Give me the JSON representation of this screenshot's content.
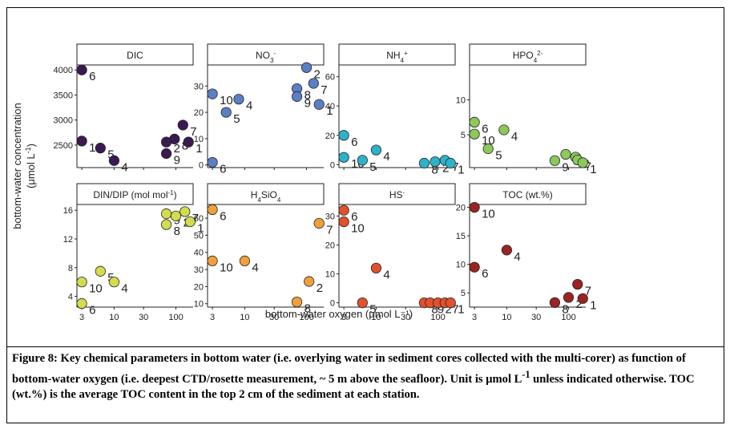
{
  "figure": {
    "ylabel_line1": "bottom-water concentration",
    "ylabel_line2_main": "(μmol L",
    "ylabel_line2_sup": "-1",
    "ylabel_line2_end": ")",
    "xlabel": "bottom-water oxygen (μmol L⁻¹)",
    "caption": {
      "lead": "Figure 8: Key chemical parameters in bottom water (i.e. overlying water in sediment cores collected with the multi-corer) as function of bottom-water oxygen (i.e. deepest CTD/rosette measurement, ~ 5 m above the seafloor). Unit is μmol L",
      "sup": "-1",
      "rest": " unless indicated otherwise. TOC (wt.%) is the average TOC content in the top 2 cm of the sediment at each station."
    }
  },
  "chart_data": [
    {
      "type": "scatter",
      "panel": "DIC",
      "title": "DIC",
      "title_sub": "",
      "title_sup": "",
      "color": "#3b1a52",
      "xscale": "log",
      "xlim": [
        2.5,
        190
      ],
      "xticks": [
        "3",
        "10",
        "30",
        "100"
      ],
      "ylim": [
        2050,
        4100
      ],
      "yticks": [
        2500,
        3000,
        3500,
        4000
      ],
      "points": [
        {
          "label": "6",
          "x": 3,
          "y": 4000
        },
        {
          "label": "10",
          "x": 3,
          "y": 2580
        },
        {
          "label": "5",
          "x": 6,
          "y": 2440
        },
        {
          "label": "4",
          "x": 10,
          "y": 2190
        },
        {
          "label": "9",
          "x": 70,
          "y": 2330
        },
        {
          "label": "8",
          "x": 95,
          "y": 2620
        },
        {
          "label": "2",
          "x": 70,
          "y": 2560
        },
        {
          "label": "7",
          "x": 130,
          "y": 2900
        },
        {
          "label": "1",
          "x": 160,
          "y": 2560
        }
      ]
    },
    {
      "type": "scatter",
      "panel": "NO3",
      "title": "NO",
      "title_sub": "3",
      "title_sup": "-",
      "color": "#5b7fc4",
      "xscale": "log",
      "xlim": [
        2.5,
        190
      ],
      "xticks": [
        "3",
        "10",
        "30",
        "100"
      ],
      "ylim": [
        -1,
        38
      ],
      "yticks": [
        0,
        10,
        20,
        30
      ],
      "points": [
        {
          "label": "6",
          "x": 3,
          "y": 1
        },
        {
          "label": "10",
          "x": 3,
          "y": 27
        },
        {
          "label": "5",
          "x": 5,
          "y": 20
        },
        {
          "label": "4",
          "x": 8,
          "y": 25
        },
        {
          "label": "8",
          "x": 70,
          "y": 29
        },
        {
          "label": "2",
          "x": 100,
          "y": 37
        },
        {
          "label": "9",
          "x": 70,
          "y": 26
        },
        {
          "label": "7",
          "x": 130,
          "y": 31
        },
        {
          "label": "1",
          "x": 160,
          "y": 23
        }
      ]
    },
    {
      "type": "scatter",
      "panel": "NH4",
      "title": "NH",
      "title_sub": "4",
      "title_sup": "+",
      "color": "#2bb3c7",
      "xscale": "log",
      "xlim": [
        2.5,
        190
      ],
      "xticks": [
        "3",
        "10",
        "30",
        "100"
      ],
      "ylim": [
        -2,
        68
      ],
      "yticks": [
        0,
        20,
        40,
        60
      ],
      "points": [
        {
          "label": "6",
          "x": 3,
          "y": 20
        },
        {
          "label": "10",
          "x": 3,
          "y": 5
        },
        {
          "label": "5",
          "x": 6,
          "y": 3
        },
        {
          "label": "4",
          "x": 10,
          "y": 10
        },
        {
          "label": "8",
          "x": 60,
          "y": 1
        },
        {
          "label": "2",
          "x": 90,
          "y": 2
        },
        {
          "label": "7",
          "x": 130,
          "y": 3
        },
        {
          "label": "1",
          "x": 160,
          "y": 1
        }
      ]
    },
    {
      "type": "scatter",
      "panel": "HPO4",
      "title": "HPO",
      "title_sub": "4",
      "title_sup": "2-",
      "color": "#8cc85a",
      "xscale": "log",
      "xlim": [
        2.5,
        190
      ],
      "xticks": [
        "3",
        "10",
        "30",
        "100"
      ],
      "ylim": [
        0.3,
        15
      ],
      "yticks": [
        5,
        10
      ],
      "points": [
        {
          "label": "6",
          "x": 3,
          "y": 6.8
        },
        {
          "label": "10",
          "x": 3,
          "y": 5.1
        },
        {
          "label": "5",
          "x": 5,
          "y": 3.0
        },
        {
          "label": "4",
          "x": 9,
          "y": 5.7
        },
        {
          "label": "9",
          "x": 60,
          "y": 1.3
        },
        {
          "label": "8",
          "x": 90,
          "y": 2.2
        },
        {
          "label": "2",
          "x": 130,
          "y": 1.8
        },
        {
          "label": "7",
          "x": 140,
          "y": 1.4
        },
        {
          "label": "1",
          "x": 170,
          "y": 1.0
        }
      ]
    },
    {
      "type": "scatter",
      "panel": "DINDIP",
      "title": "DIN/DIP (mol mol",
      "title_sub": "",
      "title_sup": "-1",
      "title_end": ")",
      "color": "#d3dc4e",
      "xscale": "log",
      "xlim": [
        2.5,
        190
      ],
      "xticks": [
        "3",
        "10",
        "30",
        "100"
      ],
      "ylim": [
        2.5,
        16.8
      ],
      "yticks": [
        4,
        8,
        12,
        16
      ],
      "points": [
        {
          "label": "6",
          "x": 3,
          "y": 3.0
        },
        {
          "label": "10",
          "x": 3,
          "y": 6.0
        },
        {
          "label": "5",
          "x": 6,
          "y": 7.5
        },
        {
          "label": "4",
          "x": 10,
          "y": 6.0
        },
        {
          "label": "9",
          "x": 70,
          "y": 15.5
        },
        {
          "label": "8",
          "x": 70,
          "y": 14.0
        },
        {
          "label": "2",
          "x": 100,
          "y": 15.2
        },
        {
          "label": "7",
          "x": 140,
          "y": 15.8
        },
        {
          "label": "1",
          "x": 170,
          "y": 14.4
        }
      ]
    },
    {
      "type": "scatter",
      "panel": "H4SiO4",
      "title": "H",
      "title_sub": "4",
      "title_sup": "",
      "title_mid": "SiO",
      "title_sub2": "4",
      "color": "#f0a03a",
      "xscale": "log",
      "xlim": [
        2.5,
        190
      ],
      "xticks": [
        "3",
        "10",
        "30",
        "100"
      ],
      "ylim": [
        8,
        68
      ],
      "yticks": [
        10,
        20,
        30,
        40,
        50,
        60
      ],
      "points": [
        {
          "label": "6",
          "x": 3,
          "y": 65
        },
        {
          "label": "10",
          "x": 3,
          "y": 35
        },
        {
          "label": "4",
          "x": 10,
          "y": 35
        },
        {
          "label": "8",
          "x": 70,
          "y": 11
        },
        {
          "label": "2",
          "x": 110,
          "y": 23
        },
        {
          "label": "7",
          "x": 160,
          "y": 57
        }
      ]
    },
    {
      "type": "scatter",
      "panel": "HS",
      "title": "HS",
      "title_sub": "",
      "title_sup": "-",
      "color": "#e2502e",
      "xscale": "log",
      "xlim": [
        2.5,
        190
      ],
      "xticks": [
        "3",
        "10",
        "30",
        "100"
      ],
      "ylim": [
        -1.5,
        34
      ],
      "yticks": [
        0,
        10,
        20,
        30
      ],
      "points": [
        {
          "label": "6",
          "x": 3,
          "y": 32
        },
        {
          "label": "10",
          "x": 3,
          "y": 28
        },
        {
          "label": "4",
          "x": 10,
          "y": 12
        },
        {
          "label": "5",
          "x": 6,
          "y": 0
        },
        {
          "label": "8",
          "x": 60,
          "y": 0
        },
        {
          "label": "9",
          "x": 75,
          "y": 0
        },
        {
          "label": "2",
          "x": 100,
          "y": 0
        },
        {
          "label": "7",
          "x": 130,
          "y": 0
        },
        {
          "label": "1",
          "x": 160,
          "y": 0
        }
      ]
    },
    {
      "type": "scatter",
      "panel": "TOC",
      "title": "TOC (wt.%)",
      "title_sub": "",
      "title_sup": "",
      "color": "#9b2323",
      "xscale": "log",
      "xlim": [
        2.5,
        190
      ],
      "xticks": [
        "3",
        "10",
        "30",
        "100"
      ],
      "ylim": [
        2.5,
        20.5
      ],
      "yticks": [
        5,
        10,
        15,
        20
      ],
      "points": [
        {
          "label": "10",
          "x": 3,
          "y": 20
        },
        {
          "label": "6",
          "x": 3,
          "y": 9.5
        },
        {
          "label": "4",
          "x": 10,
          "y": 12.5
        },
        {
          "label": "8",
          "x": 60,
          "y": 3.3
        },
        {
          "label": "2",
          "x": 100,
          "y": 4.2
        },
        {
          "label": "7",
          "x": 140,
          "y": 6.5
        },
        {
          "label": "1",
          "x": 170,
          "y": 4.0
        }
      ]
    }
  ]
}
